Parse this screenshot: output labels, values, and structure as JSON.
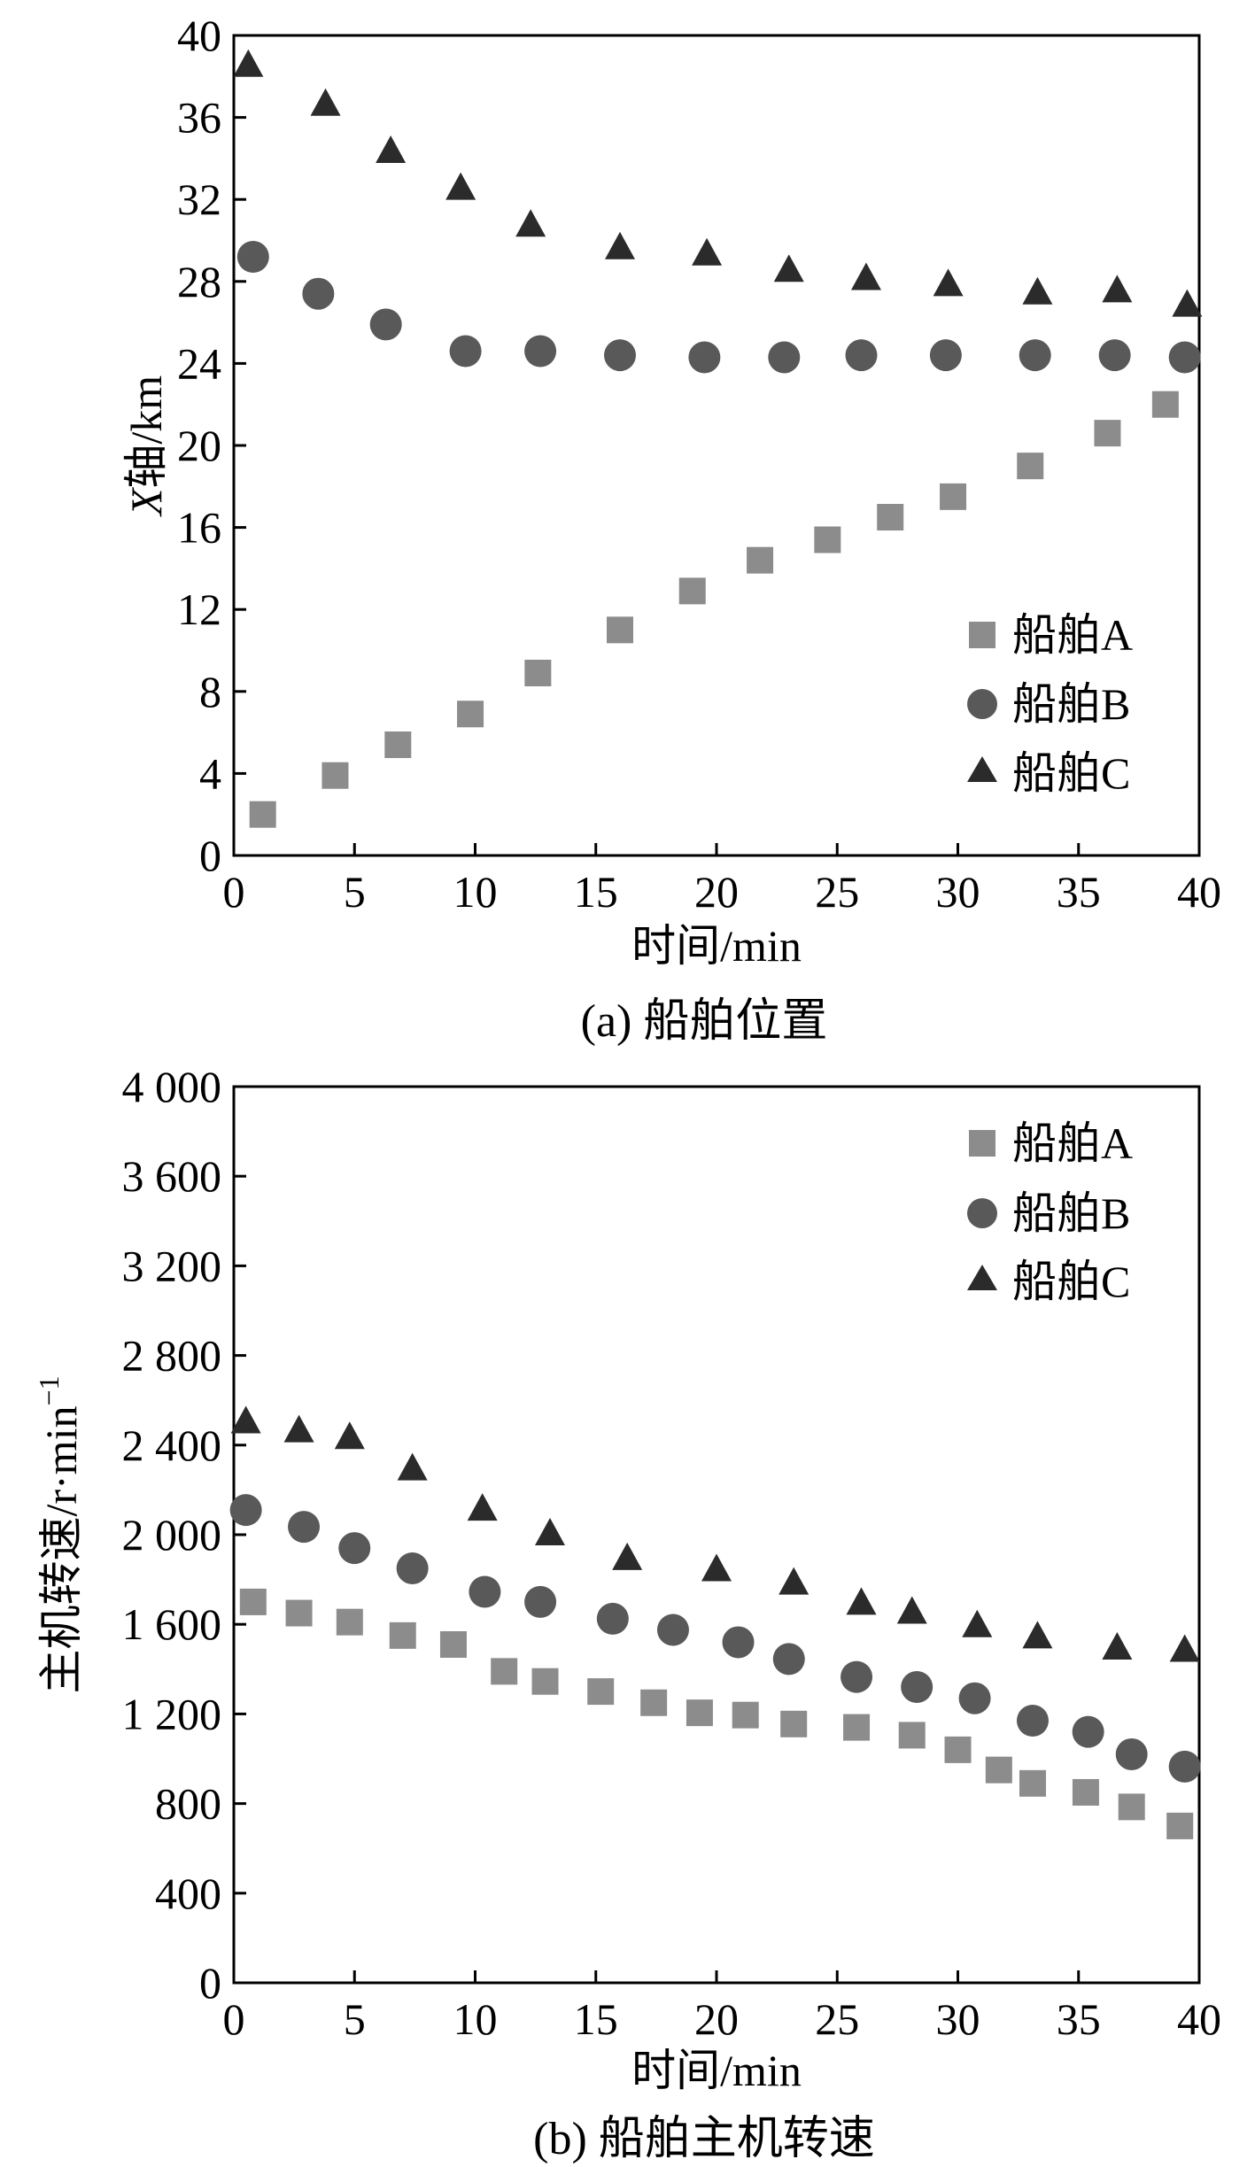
{
  "colors": {
    "ship_a": "#8c8c8c",
    "ship_b": "#595959",
    "ship_c": "#2b2b2b"
  },
  "chart_data": [
    {
      "type": "scatter",
      "title": "",
      "caption": "(a) 船舶位置",
      "xlabel": "时间/min",
      "ylabel_italic": "X",
      "ylabel_rest": "轴/km",
      "xlim": [
        0,
        40
      ],
      "ylim": [
        0,
        40
      ],
      "xticks": [
        0,
        5,
        10,
        15,
        20,
        25,
        30,
        35,
        40
      ],
      "xtick_labels": [
        "0",
        "5",
        "10",
        "15",
        "20",
        "25",
        "30",
        "35",
        "40"
      ],
      "yticks": [
        0,
        4,
        8,
        12,
        16,
        20,
        24,
        28,
        32,
        36,
        40
      ],
      "ytick_labels": [
        "0",
        "4",
        "8",
        "12",
        "16",
        "20",
        "24",
        "28",
        "32",
        "36",
        "40"
      ],
      "legend_position": "bottom-right",
      "series": [
        {
          "name": "船舶A",
          "marker": "square",
          "color_key": "ship_a",
          "x": [
            1.2,
            4.2,
            6.8,
            9.8,
            12.6,
            16,
            19,
            21.8,
            24.6,
            27.2,
            29.8,
            33,
            36.2,
            38.6
          ],
          "y": [
            2.0,
            3.9,
            5.4,
            6.9,
            8.9,
            11.0,
            12.9,
            14.4,
            15.4,
            16.5,
            17.5,
            19.0,
            20.6,
            22.0
          ]
        },
        {
          "name": "船舶B",
          "marker": "circle",
          "color_key": "ship_b",
          "x": [
            0.8,
            3.5,
            6.3,
            9.6,
            12.7,
            16,
            19.5,
            22.8,
            26,
            29.5,
            33.2,
            36.5,
            39.4
          ],
          "y": [
            29.2,
            27.4,
            25.9,
            24.6,
            24.6,
            24.4,
            24.3,
            24.3,
            24.4,
            24.4,
            24.4,
            24.4,
            24.3
          ]
        },
        {
          "name": "船舶C",
          "marker": "triangle",
          "color_key": "ship_c",
          "x": [
            0.6,
            3.8,
            6.5,
            9.4,
            12.3,
            16,
            19.6,
            23,
            26.2,
            29.6,
            33.3,
            36.6,
            39.5
          ],
          "y": [
            38.5,
            36.6,
            34.3,
            32.5,
            30.7,
            29.6,
            29.3,
            28.5,
            28.1,
            27.8,
            27.4,
            27.5,
            26.8
          ]
        }
      ]
    },
    {
      "type": "scatter",
      "title": "",
      "caption": "(b) 船舶主机转速",
      "xlabel": "时间/min",
      "ylabel": "主机转速/r·min",
      "ylabel_sup": "−1",
      "xlim": [
        0,
        40
      ],
      "ylim": [
        0,
        4000
      ],
      "xticks": [
        0,
        5,
        10,
        15,
        20,
        25,
        30,
        35,
        40
      ],
      "xtick_labels": [
        "0",
        "5",
        "10",
        "15",
        "20",
        "25",
        "30",
        "35",
        "40"
      ],
      "yticks": [
        0,
        400,
        800,
        1200,
        1600,
        2000,
        2400,
        2800,
        3200,
        3600,
        4000
      ],
      "ytick_labels": [
        "0",
        "400",
        "800",
        "1 200",
        "1 600",
        "2 000",
        "2 400",
        "2 800",
        "3 200",
        "3 600",
        "4 000"
      ],
      "legend_position": "top-right",
      "series": [
        {
          "name": "船舶A",
          "marker": "square",
          "color_key": "ship_a",
          "x": [
            0.8,
            2.7,
            4.8,
            7.0,
            9.1,
            11.2,
            12.9,
            15.2,
            17.4,
            19.3,
            21.2,
            23.2,
            25.8,
            28.1,
            30.0,
            31.7,
            33.1,
            35.3,
            37.2,
            39.2
          ],
          "y": [
            1700,
            1650,
            1610,
            1550,
            1510,
            1390,
            1345,
            1300,
            1250,
            1205,
            1195,
            1155,
            1140,
            1105,
            1040,
            950,
            890,
            850,
            785,
            700
          ]
        },
        {
          "name": "船舶B",
          "marker": "circle",
          "color_key": "ship_b",
          "x": [
            0.5,
            2.9,
            5.0,
            7.4,
            10.4,
            12.7,
            15.7,
            18.2,
            20.9,
            23.0,
            25.8,
            28.3,
            30.7,
            33.1,
            35.4,
            37.2,
            39.4
          ],
          "y": [
            2110,
            2035,
            1940,
            1850,
            1745,
            1700,
            1625,
            1575,
            1520,
            1445,
            1365,
            1320,
            1270,
            1170,
            1120,
            1020,
            965
          ]
        },
        {
          "name": "船舶C",
          "marker": "triangle",
          "color_key": "ship_c",
          "x": [
            0.5,
            2.7,
            4.8,
            7.4,
            10.3,
            13.1,
            16.3,
            20.0,
            23.2,
            26.0,
            28.1,
            30.8,
            33.3,
            36.6,
            39.4
          ],
          "y": [
            2500,
            2460,
            2430,
            2290,
            2110,
            2000,
            1890,
            1840,
            1780,
            1690,
            1650,
            1590,
            1540,
            1490,
            1480
          ]
        }
      ]
    }
  ]
}
